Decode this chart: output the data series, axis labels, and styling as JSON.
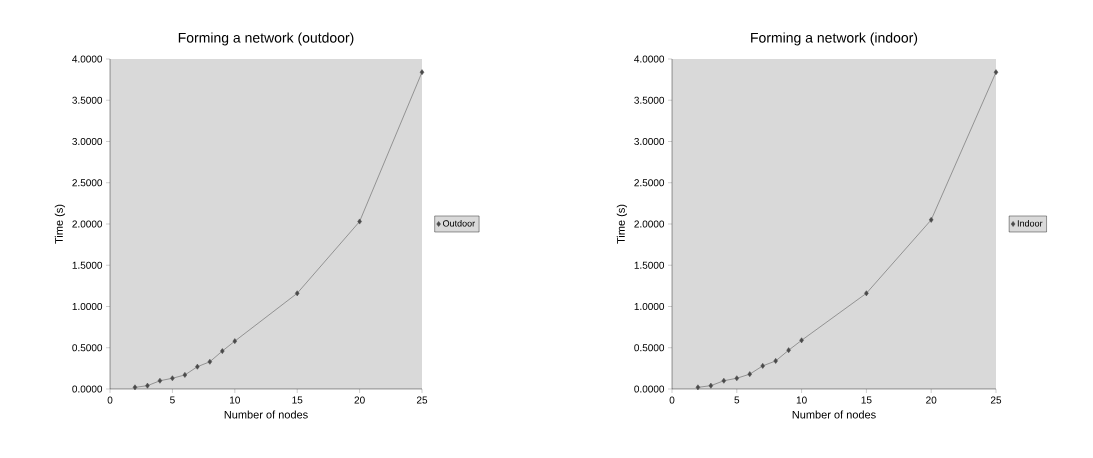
{
  "chart_data": [
    {
      "type": "line",
      "title": "Forming a network (outdoor)",
      "xlabel": "Number of nodes",
      "ylabel": "Time (s)",
      "marker": "diamond",
      "legend": "right",
      "grid": false,
      "x": [
        2,
        3,
        4,
        5,
        6,
        7,
        8,
        9,
        10,
        15,
        20,
        25
      ],
      "series": [
        {
          "name": "Outdoor",
          "color": "#4a4a4a",
          "values": [
            0.02,
            0.04,
            0.1,
            0.13,
            0.17,
            0.27,
            0.33,
            0.46,
            0.58,
            1.16,
            2.03,
            3.84
          ]
        }
      ],
      "xlim": [
        0,
        25
      ],
      "xticks": [
        0,
        5,
        10,
        15,
        20,
        25
      ],
      "ylim": [
        0,
        4
      ],
      "yticks": [
        {
          "value": 0,
          "label": "0.0000"
        },
        {
          "value": 0.5,
          "label": "0.5000"
        },
        {
          "value": 1,
          "label": "1.0000"
        },
        {
          "value": 1.5,
          "label": "1.5000"
        },
        {
          "value": 2,
          "label": "2.0000"
        },
        {
          "value": 2.5,
          "label": "2.5000"
        },
        {
          "value": 3,
          "label": "3.0000"
        },
        {
          "value": 3.5,
          "label": "3.5000"
        },
        {
          "value": 4,
          "label": "4.0000"
        }
      ]
    },
    {
      "type": "line",
      "title": "Forming a network (indoor)",
      "xlabel": "Number of nodes",
      "ylabel": "Time (s)",
      "marker": "diamond",
      "legend": "right",
      "grid": false,
      "x": [
        2,
        3,
        4,
        5,
        6,
        7,
        8,
        9,
        10,
        15,
        20,
        25
      ],
      "series": [
        {
          "name": "Indoor",
          "color": "#4a4a4a",
          "values": [
            0.02,
            0.04,
            0.1,
            0.13,
            0.18,
            0.28,
            0.34,
            0.47,
            0.59,
            1.16,
            2.05,
            3.84
          ]
        }
      ],
      "xlim": [
        0,
        25
      ],
      "xticks": [
        0,
        5,
        10,
        15,
        20,
        25
      ],
      "ylim": [
        0,
        4
      ],
      "yticks": [
        {
          "value": 0,
          "label": "0.0000"
        },
        {
          "value": 0.5,
          "label": "0.5000"
        },
        {
          "value": 1,
          "label": "1.0000"
        },
        {
          "value": 1.5,
          "label": "1.5000"
        },
        {
          "value": 2,
          "label": "2.0000"
        },
        {
          "value": 2.5,
          "label": "2.5000"
        },
        {
          "value": 3,
          "label": "3.0000"
        },
        {
          "value": 3.5,
          "label": "3.5000"
        },
        {
          "value": 4,
          "label": "4.0000"
        }
      ]
    }
  ]
}
